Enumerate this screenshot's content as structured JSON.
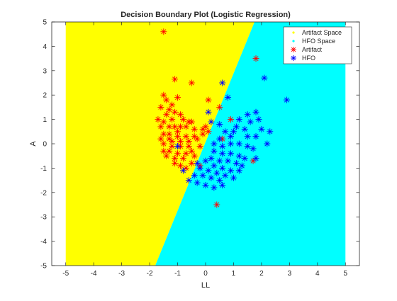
{
  "chart_data": {
    "type": "scatter",
    "title": "Decision Boundary Plot (Logistic Regression)",
    "xlabel": "LL",
    "ylabel": "A",
    "xlim": [
      -5.5,
      5.5
    ],
    "ylim": [
      -5,
      5
    ],
    "xticks": [
      -5,
      -4,
      -3,
      -2,
      -1,
      0,
      1,
      2,
      3,
      4,
      5
    ],
    "yticks": [
      -5,
      -4,
      -3,
      -2,
      -1,
      0,
      1,
      2,
      3,
      4,
      5
    ],
    "grid": false,
    "legend_position": "top-right",
    "regions": {
      "grid_extent_x": [
        -5,
        5
      ],
      "grid_extent_y": [
        -5,
        5
      ],
      "boundary": [
        [
          -1.8,
          -5
        ],
        [
          1.75,
          5
        ]
      ],
      "left_name": "Artifact Space",
      "left_color": "#ffff00",
      "right_name": "HFO Space",
      "right_color": "#00ffff"
    },
    "series": [
      {
        "name": "Artifact",
        "color": "#ff0000",
        "marker": "asterisk",
        "points": [
          [
            -1.5,
            4.6
          ],
          [
            -1.1,
            2.65
          ],
          [
            -0.5,
            2.5
          ],
          [
            -1.5,
            2.0
          ],
          [
            -1.0,
            1.9
          ],
          [
            -1.4,
            1.8
          ],
          [
            -1.2,
            1.6
          ],
          [
            -1.6,
            1.5
          ],
          [
            -1.3,
            1.4
          ],
          [
            0.1,
            1.8
          ],
          [
            0.5,
            1.5
          ],
          [
            -1.4,
            1.2
          ],
          [
            -1.1,
            1.3
          ],
          [
            -0.9,
            1.2
          ],
          [
            -1.7,
            1.0
          ],
          [
            -1.5,
            0.9
          ],
          [
            -1.2,
            1.0
          ],
          [
            -0.8,
            1.0
          ],
          [
            -0.5,
            0.9
          ],
          [
            0.0,
            0.7
          ],
          [
            -1.6,
            0.7
          ],
          [
            -1.3,
            0.7
          ],
          [
            -1.1,
            0.7
          ],
          [
            -0.9,
            0.7
          ],
          [
            -0.7,
            0.7
          ],
          [
            -0.4,
            0.6
          ],
          [
            -0.1,
            0.6
          ],
          [
            -1.5,
            0.4
          ],
          [
            -1.3,
            0.4
          ],
          [
            -1.0,
            0.3
          ],
          [
            -0.7,
            0.3
          ],
          [
            -0.4,
            0.3
          ],
          [
            -0.1,
            0.4
          ],
          [
            0.1,
            0.5
          ],
          [
            -1.6,
            0.2
          ],
          [
            -1.2,
            0.1
          ],
          [
            -0.9,
            0.1
          ],
          [
            -0.6,
            0.1
          ],
          [
            -0.3,
            0.2
          ],
          [
            -1.5,
            0.0
          ],
          [
            -1.2,
            -0.1
          ],
          [
            -0.9,
            -0.1
          ],
          [
            -0.6,
            -0.1
          ],
          [
            -0.2,
            -0.1
          ],
          [
            -1.5,
            -0.3
          ],
          [
            -1.3,
            -0.3
          ],
          [
            -1.0,
            -0.4
          ],
          [
            -0.7,
            -0.4
          ],
          [
            -0.4,
            -0.5
          ],
          [
            -1.4,
            -0.5
          ],
          [
            -1.1,
            -0.6
          ],
          [
            -0.8,
            -0.6
          ],
          [
            -0.5,
            -0.3
          ],
          [
            -1.1,
            -0.8
          ],
          [
            -0.9,
            -0.9
          ],
          [
            -0.5,
            -0.8
          ],
          [
            -0.2,
            -0.9
          ],
          [
            -0.7,
            -1.0
          ],
          [
            1.8,
            3.5
          ],
          [
            0.9,
            1.0
          ],
          [
            1.7,
            -0.7
          ],
          [
            0.4,
            -2.5
          ],
          [
            0.6,
            0.2
          ],
          [
            -0.6,
            0.9
          ],
          [
            -1.3,
            0.2
          ],
          [
            -1.0,
            0.5
          ]
        ]
      },
      {
        "name": "HFO",
        "color": "#0000ff",
        "marker": "asterisk",
        "points": [
          [
            0.6,
            2.5
          ],
          [
            2.1,
            2.7
          ],
          [
            0.8,
            1.9
          ],
          [
            2.9,
            1.8
          ],
          [
            0.1,
            1.3
          ],
          [
            1.8,
            1.3
          ],
          [
            1.5,
            1.2
          ],
          [
            1.2,
            1.0
          ],
          [
            1.9,
            1.0
          ],
          [
            1.6,
            0.9
          ],
          [
            0.5,
            0.8
          ],
          [
            1.1,
            0.7
          ],
          [
            1.4,
            0.6
          ],
          [
            2.0,
            0.6
          ],
          [
            2.3,
            0.5
          ],
          [
            1.0,
            0.5
          ],
          [
            1.5,
            0.3
          ],
          [
            1.8,
            0.3
          ],
          [
            0.9,
            0.3
          ],
          [
            0.5,
            0.2
          ],
          [
            0.3,
            0.0
          ],
          [
            0.6,
            -0.1
          ],
          [
            0.9,
            0.0
          ],
          [
            1.2,
            0.0
          ],
          [
            1.5,
            -0.1
          ],
          [
            2.2,
            0.0
          ],
          [
            1.7,
            -0.2
          ],
          [
            0.3,
            -0.3
          ],
          [
            0.6,
            -0.4
          ],
          [
            0.9,
            -0.4
          ],
          [
            1.2,
            -0.5
          ],
          [
            1.4,
            -0.6
          ],
          [
            0.2,
            -0.6
          ],
          [
            0.5,
            -0.7
          ],
          [
            0.8,
            -0.7
          ],
          [
            1.1,
            -0.8
          ],
          [
            1.3,
            -0.9
          ],
          [
            0.0,
            -0.7
          ],
          [
            -0.3,
            -0.8
          ],
          [
            0.3,
            -0.9
          ],
          [
            0.6,
            -1.0
          ],
          [
            0.9,
            -1.1
          ],
          [
            1.2,
            -1.1
          ],
          [
            -0.2,
            -1.0
          ],
          [
            0.1,
            -1.1
          ],
          [
            0.4,
            -1.2
          ],
          [
            0.7,
            -1.3
          ],
          [
            1.0,
            -1.4
          ],
          [
            -0.4,
            -1.3
          ],
          [
            -0.1,
            -1.3
          ],
          [
            0.2,
            -1.4
          ],
          [
            0.5,
            -1.5
          ],
          [
            -0.6,
            -1.5
          ],
          [
            -0.3,
            -1.6
          ],
          [
            0.0,
            -1.7
          ],
          [
            0.3,
            -1.8
          ],
          [
            0.6,
            -1.7
          ],
          [
            -1.0,
            -0.1
          ],
          [
            -0.8,
            -1.1
          ],
          [
            1.8,
            -0.6
          ],
          [
            0.7,
            0.5
          ],
          [
            0.2,
            0.9
          ]
        ]
      }
    ]
  }
}
